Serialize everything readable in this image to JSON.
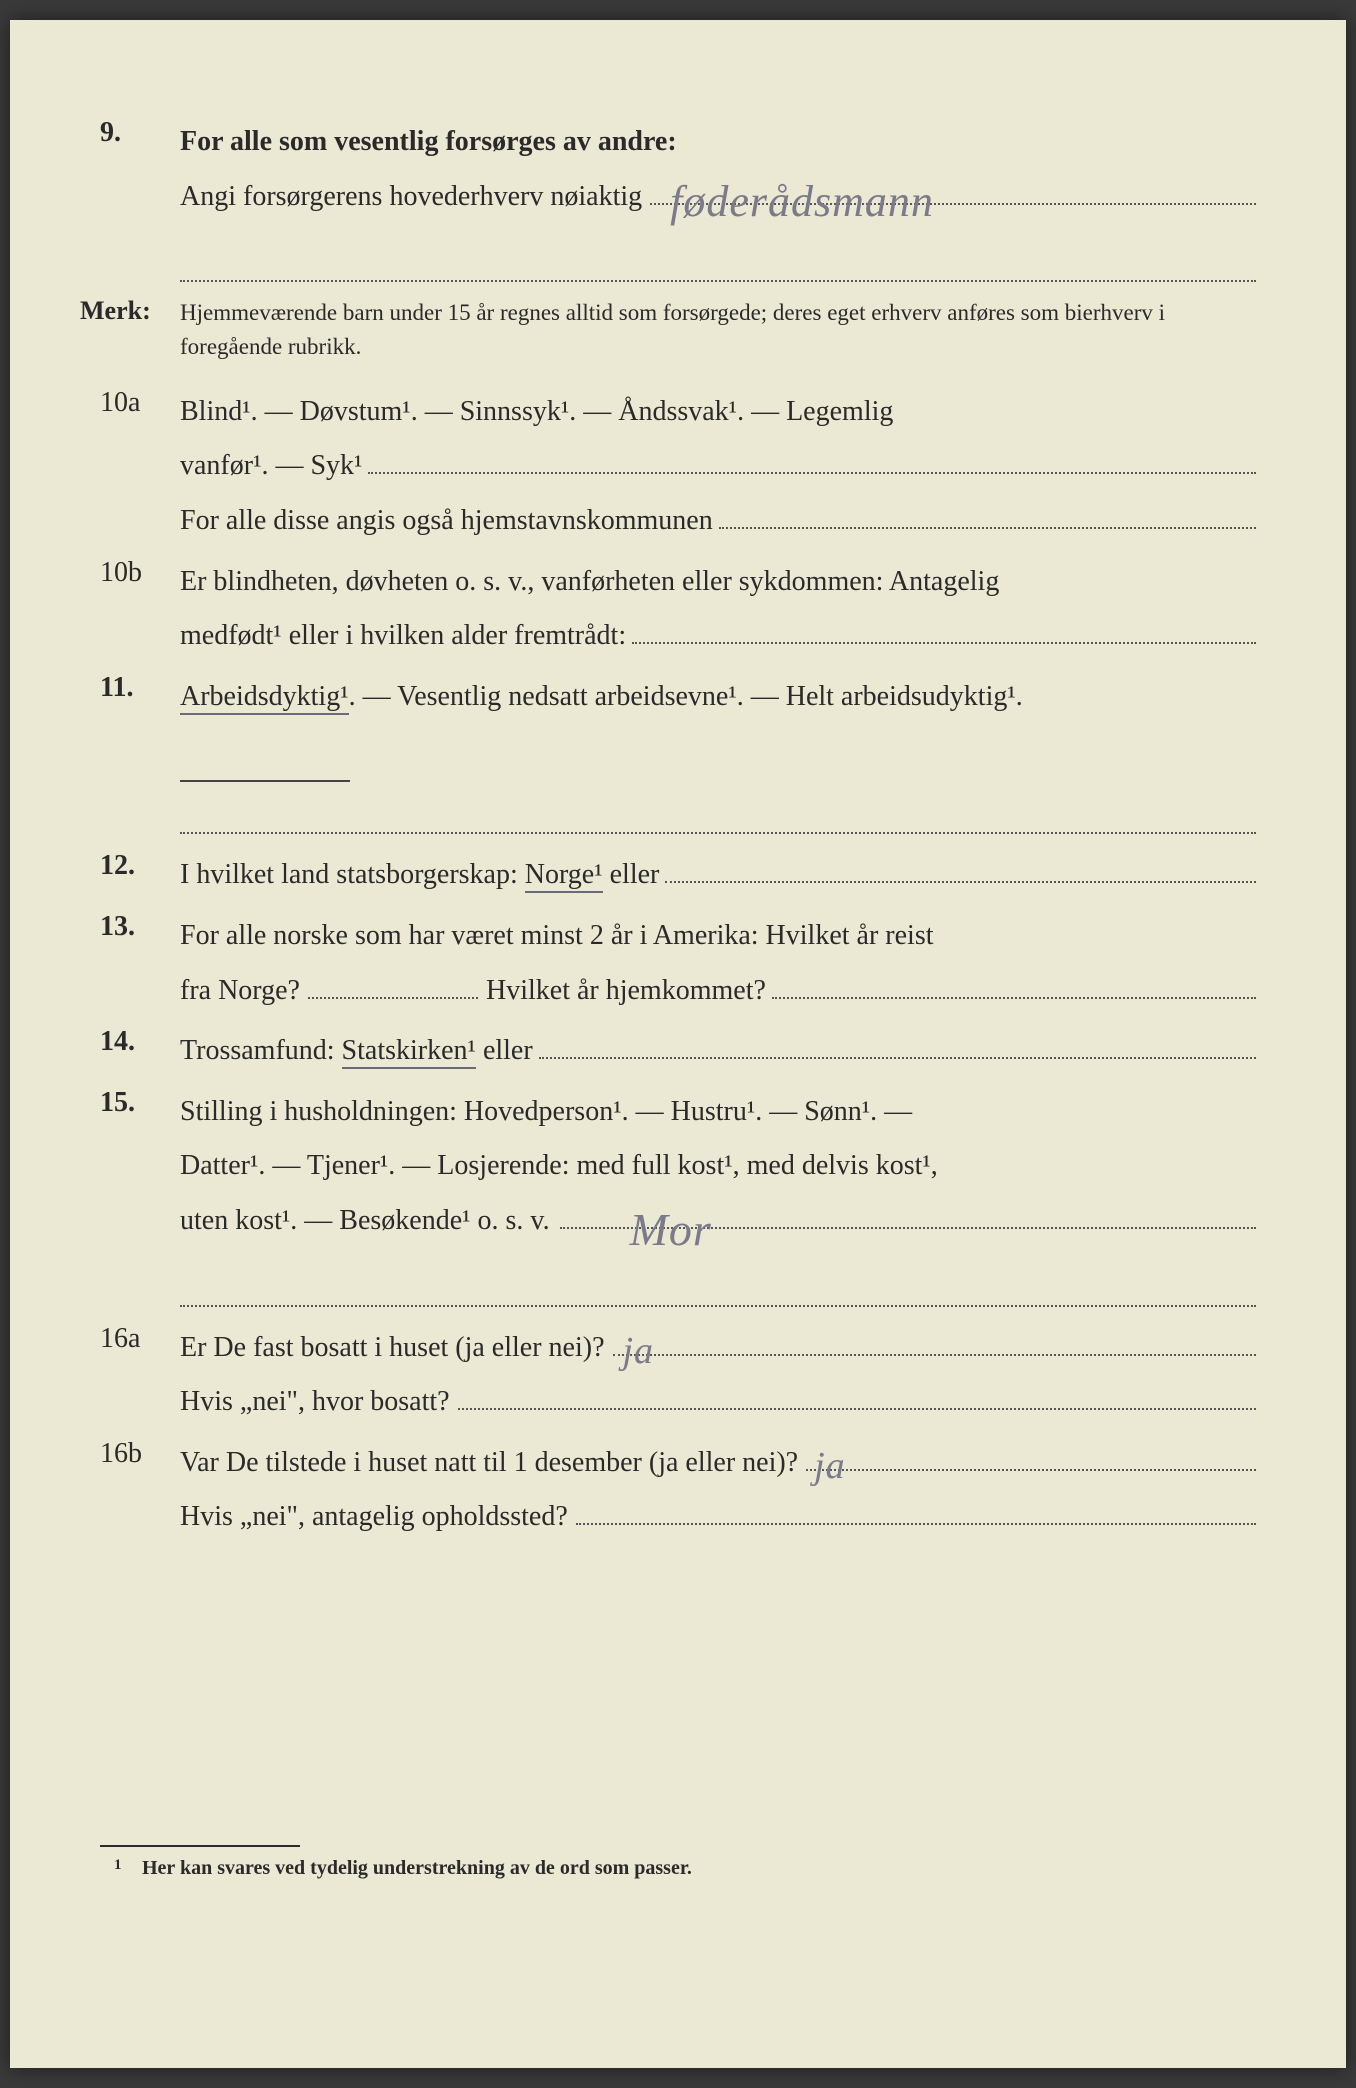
{
  "colors": {
    "page_bg": "#ebe8d4",
    "outer_bg": "#3a3a3a",
    "text": "#2a2a2a",
    "handwriting": "#7a7a8a",
    "dotted": "#555"
  },
  "typography": {
    "body_fontsize_pt": 21,
    "merk_fontsize_pt": 17,
    "footnote_fontsize_pt": 15,
    "line_height": 1.95
  },
  "q9": {
    "num": "9.",
    "line1": "For alle som vesentlig forsørges av andre:",
    "line2_prefix": "Angi forsørgerens hovederhverv nøiaktig",
    "handwritten": "føderådsmann"
  },
  "merk": {
    "label": "Merk:",
    "text": "Hjemmeværende barn under 15 år regnes alltid som forsørgede; deres eget erhverv anføres som bierhverv i foregående rubrikk."
  },
  "q10a": {
    "num": "10a",
    "line1": "Blind¹.  —  Døvstum¹.  —  Sinnssyk¹.  —  Åndssvak¹.  —  Legemlig",
    "line2_prefix": "vanfør¹.  —  Syk¹",
    "line3_prefix": "For alle disse angis også hjemstavnskommunen"
  },
  "q10b": {
    "num": "10b",
    "line1": "Er blindheten, døvheten o. s. v., vanførheten eller sykdommen: Antagelig",
    "line2_prefix": "medfødt¹ eller i hvilken alder fremtrådt:"
  },
  "q11": {
    "num": "11.",
    "underlined": "Arbeidsdyktig¹",
    "rest": ". — Vesentlig nedsatt arbeidsevne¹. — Helt arbeidsudyktig¹."
  },
  "q12": {
    "num": "12.",
    "prefix": "I  hvilket  land  statsborgerskap:  ",
    "underlined": "Norge¹",
    "after": " eller"
  },
  "q13": {
    "num": "13.",
    "line1": "For  alle  norske  som  har  været  minst  2  år  i  Amerika:  Hvilket år reist",
    "line2_a": "fra Norge?",
    "line2_b": "Hvilket år hjemkommet?"
  },
  "q14": {
    "num": "14.",
    "prefix": "Trossamfund:  ",
    "underlined": "Statskirken¹",
    "after": " eller"
  },
  "q15": {
    "num": "15.",
    "line1": "Stilling  i  husholdningen:  Hovedperson¹.  —  Hustru¹.  —  Sønn¹.  —",
    "line2": "Datter¹.  —  Tjener¹.  —  Losjerende:  med  full  kost¹,  med  delvis  kost¹,",
    "line3_prefix": "uten kost¹.  —  Besøkende¹  o.  s.  v.",
    "handwritten": "Mor"
  },
  "q16a": {
    "num": "16a",
    "line1_prefix": "Er De fast bosatt i huset (ja eller nei)?",
    "handwritten": "ja",
    "line2_prefix": "Hvis „nei\", hvor bosatt?"
  },
  "q16b": {
    "num": "16b",
    "line1_prefix": "Var De tilstede i huset natt til 1 desember (ja eller nei)?",
    "handwritten": "ja",
    "line2_prefix": "Hvis „nei\", antagelig opholdssted?"
  },
  "footnote": {
    "num": "1",
    "text": "Her kan svares ved tydelig understrekning av de ord som passer."
  }
}
